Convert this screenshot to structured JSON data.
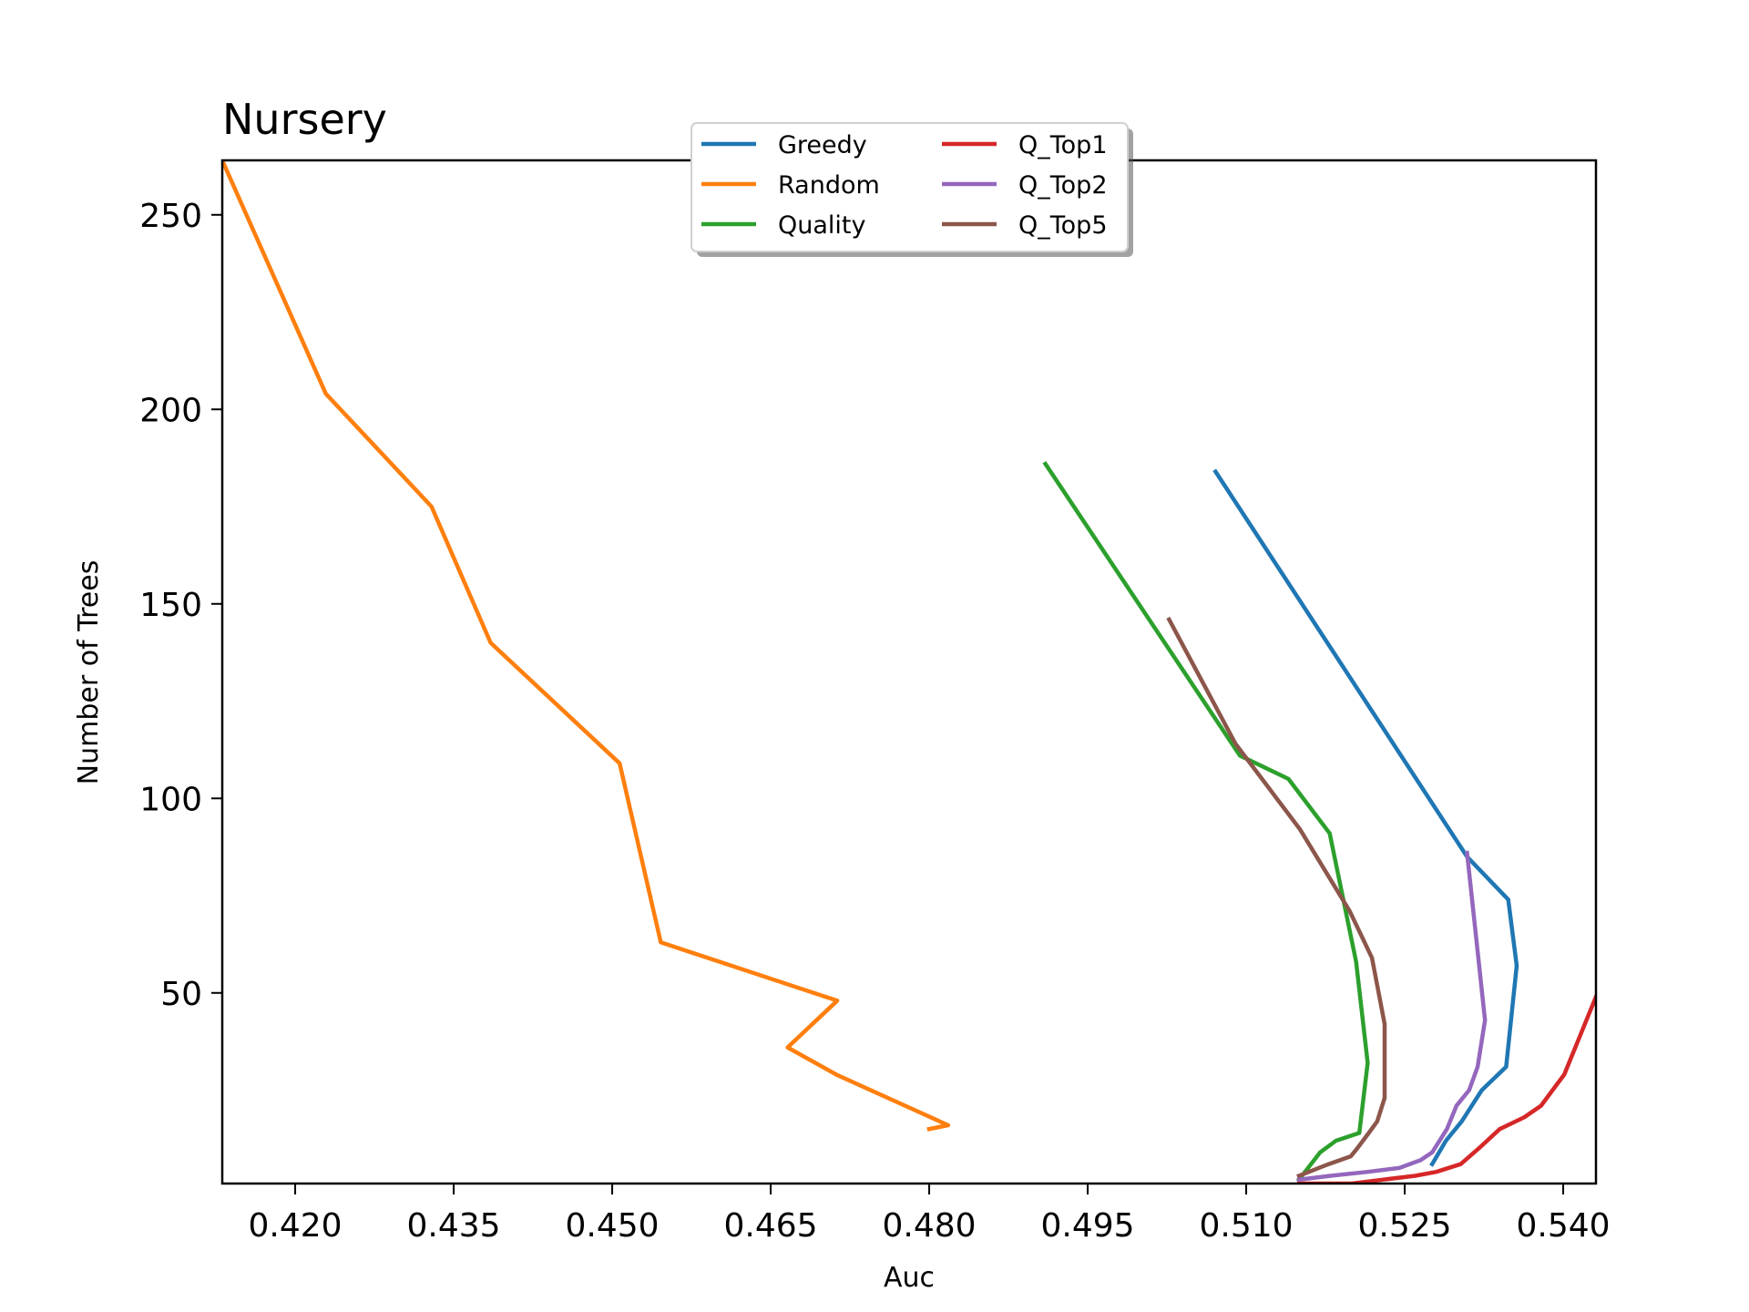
{
  "chart_data": {
    "type": "line",
    "title": "Nursery",
    "xlabel": "Auc",
    "ylabel": "Number of Trees",
    "xlim": [
      0.4131,
      0.5431
    ],
    "ylim": [
      1,
      264
    ],
    "xticks": [
      "0.420",
      "0.435",
      "0.450",
      "0.465",
      "0.480",
      "0.495",
      "0.510",
      "0.525",
      "0.540"
    ],
    "yticks": [
      "50",
      "100",
      "150",
      "200",
      "250"
    ],
    "grid": false,
    "legend": {
      "placement": "upper-center",
      "columns": 2,
      "shadow": true
    },
    "series": [
      {
        "name": "Greedy",
        "color": "#1f77b4",
        "points": [
          [
            0.5071,
            184
          ],
          [
            0.5309,
            85
          ],
          [
            0.5348,
            74
          ],
          [
            0.5356,
            57
          ],
          [
            0.5346,
            31
          ],
          [
            0.5323,
            25
          ],
          [
            0.5304,
            17
          ],
          [
            0.5289,
            12
          ],
          [
            0.5276,
            6
          ]
        ]
      },
      {
        "name": "Random",
        "color": "#ff7f0e",
        "points": [
          [
            0.4131,
            264
          ],
          [
            0.4229,
            204
          ],
          [
            0.4329,
            175
          ],
          [
            0.4385,
            140
          ],
          [
            0.4507,
            109
          ],
          [
            0.4546,
            63
          ],
          [
            0.4713,
            48
          ],
          [
            0.4666,
            36
          ],
          [
            0.4712,
            29
          ],
          [
            0.4818,
            16
          ],
          [
            0.48,
            15
          ]
        ]
      },
      {
        "name": "Quality",
        "color": "#2ca02c",
        "points": [
          [
            0.491,
            186
          ],
          [
            0.5094,
            111
          ],
          [
            0.514,
            105
          ],
          [
            0.5179,
            91
          ],
          [
            0.5204,
            58
          ],
          [
            0.5215,
            32
          ],
          [
            0.5207,
            14
          ],
          [
            0.5185,
            12
          ],
          [
            0.517,
            9
          ],
          [
            0.515,
            2
          ]
        ]
      },
      {
        "name": "Q_Top1",
        "color": "#d62728",
        "points": [
          [
            0.5431,
            49
          ],
          [
            0.5401,
            29
          ],
          [
            0.539,
            25
          ],
          [
            0.5379,
            21
          ],
          [
            0.5363,
            18
          ],
          [
            0.534,
            15
          ],
          [
            0.532,
            10
          ],
          [
            0.5303,
            6
          ],
          [
            0.528,
            4
          ],
          [
            0.526,
            3
          ],
          [
            0.523,
            2
          ],
          [
            0.52,
            1
          ],
          [
            0.515,
            1
          ]
        ]
      },
      {
        "name": "Q_Top2",
        "color": "#9467bd",
        "points": [
          [
            0.5309,
            86
          ],
          [
            0.5326,
            43
          ],
          [
            0.5319,
            31
          ],
          [
            0.5311,
            25
          ],
          [
            0.5299,
            21
          ],
          [
            0.529,
            15
          ],
          [
            0.5276,
            9
          ],
          [
            0.5265,
            7
          ],
          [
            0.5245,
            5
          ],
          [
            0.5215,
            4
          ],
          [
            0.518,
            3
          ],
          [
            0.515,
            2
          ]
        ]
      },
      {
        "name": "Q_Top5",
        "color": "#8c564b",
        "points": [
          [
            0.5027,
            146
          ],
          [
            0.509,
            114
          ],
          [
            0.5151,
            92
          ],
          [
            0.5198,
            71
          ],
          [
            0.5219,
            59
          ],
          [
            0.5231,
            42
          ],
          [
            0.5231,
            23
          ],
          [
            0.5224,
            17
          ],
          [
            0.5216,
            14
          ],
          [
            0.5205,
            10
          ],
          [
            0.5199,
            8
          ],
          [
            0.5178,
            6
          ],
          [
            0.515,
            3
          ]
        ]
      }
    ]
  }
}
